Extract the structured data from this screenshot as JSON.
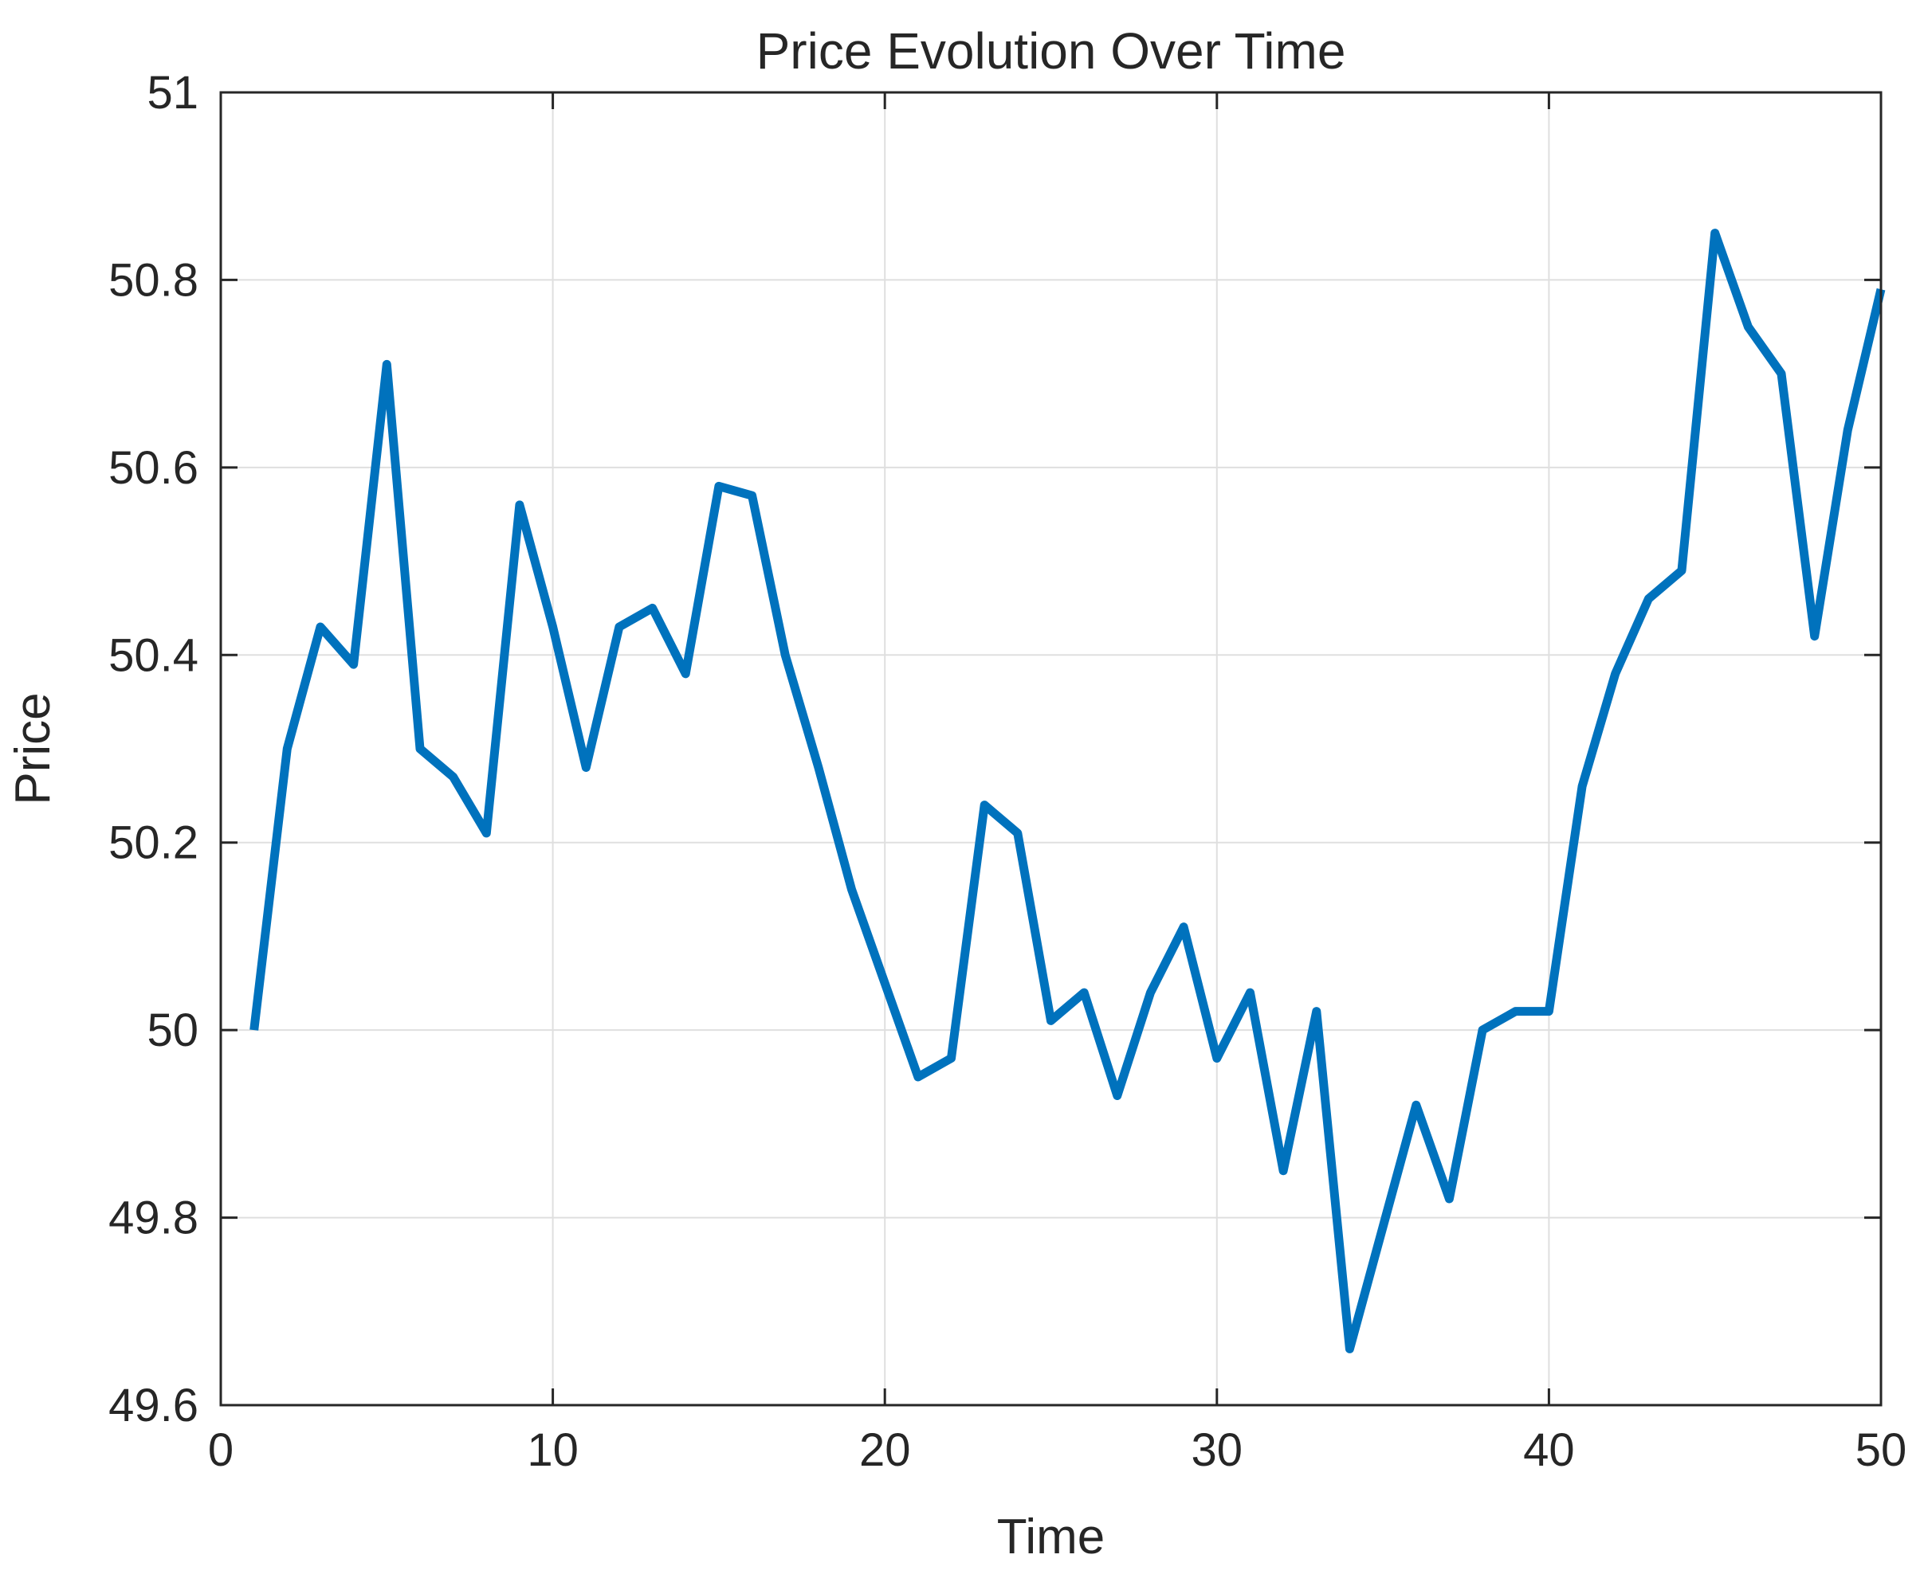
{
  "chart_data": {
    "type": "line",
    "title": "Price Evolution Over Time",
    "xlabel": "Time",
    "ylabel": "Price",
    "xlim": [
      0,
      50
    ],
    "ylim": [
      49.6,
      51
    ],
    "xticks": [
      0,
      10,
      20,
      30,
      40,
      50
    ],
    "xtick_labels": [
      "0",
      "10",
      "20",
      "30",
      "40",
      "50"
    ],
    "yticks": [
      49.6,
      49.8,
      50,
      50.2,
      50.4,
      50.6,
      50.8,
      51
    ],
    "ytick_labels": [
      "49.6",
      "49.8",
      "50",
      "50.2",
      "50.4",
      "50.6",
      "50.8",
      "51"
    ],
    "grid": true,
    "box": true,
    "series": [
      {
        "color": "#0072BD",
        "x": [
          1,
          2,
          3,
          4,
          5,
          6,
          7,
          8,
          9,
          10,
          11,
          12,
          13,
          14,
          15,
          16,
          17,
          18,
          19,
          20,
          21,
          22,
          23,
          24,
          25,
          26,
          27,
          28,
          29,
          30,
          31,
          32,
          33,
          34,
          35,
          36,
          37,
          38,
          39,
          40,
          41,
          42,
          43,
          44,
          45,
          46,
          47,
          48,
          49,
          50
        ],
        "y": [
          50.0,
          50.3,
          50.43,
          50.39,
          50.71,
          50.3,
          50.27,
          50.21,
          50.56,
          50.43,
          50.28,
          50.43,
          50.45,
          50.38,
          50.58,
          50.57,
          50.4,
          50.28,
          50.15,
          50.05,
          49.95,
          49.97,
          50.24,
          50.21,
          50.01,
          50.04,
          49.93,
          50.04,
          50.11,
          49.97,
          50.04,
          49.85,
          50.02,
          49.66,
          49.79,
          49.92,
          49.82,
          50.0,
          50.02,
          50.02,
          50.26,
          50.38,
          50.46,
          50.49,
          50.85,
          50.75,
          50.7,
          50.42,
          50.64,
          50.79
        ]
      }
    ]
  }
}
